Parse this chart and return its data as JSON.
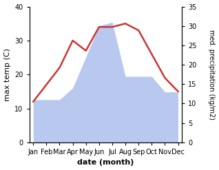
{
  "months": [
    "Jan",
    "Feb",
    "Mar",
    "Apr",
    "May",
    "Jun",
    "Jul",
    "Aug",
    "Sep",
    "Oct",
    "Nov",
    "Dec"
  ],
  "temperature": [
    12,
    17,
    22,
    30,
    27,
    34,
    34,
    35,
    33,
    26,
    19,
    15
  ],
  "precipitation": [
    11,
    11,
    11,
    14,
    22,
    30,
    31,
    17,
    17,
    17,
    13,
    13
  ],
  "temp_color": "#cc3333",
  "precip_color": "#b8c8ee",
  "ylabel_left": "max temp (C)",
  "ylabel_right": "med. precipitation (kg/m2)",
  "xlabel": "date (month)",
  "ylim_left": [
    0,
    40
  ],
  "ylim_right": [
    0,
    35
  ],
  "yticks_left": [
    0,
    10,
    20,
    30,
    40
  ],
  "yticks_right": [
    0,
    5,
    10,
    15,
    20,
    25,
    30,
    35
  ],
  "line_width": 1.8,
  "background_color": "#ffffff"
}
